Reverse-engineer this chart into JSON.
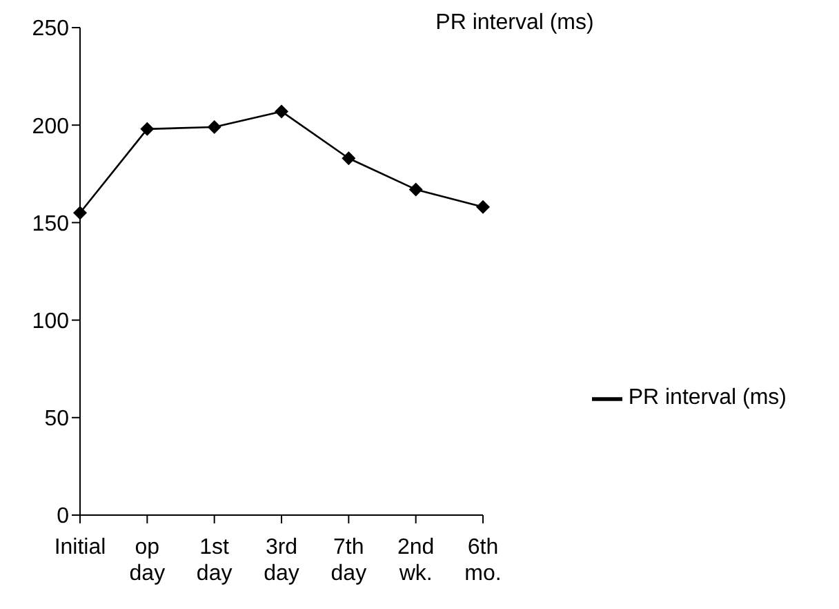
{
  "chart_data": {
    "type": "line",
    "title": "PR interval (ms)",
    "categories": [
      "Initial",
      "op\nday",
      "1st\nday",
      "3rd\nday",
      "7th\nday",
      "2nd\nwk.",
      "6th\nmo."
    ],
    "series": [
      {
        "name": "PR interval (ms)",
        "color": "#000000",
        "values": [
          155,
          198,
          199,
          207,
          183,
          167,
          158
        ]
      }
    ],
    "ylim": [
      0,
      250
    ],
    "yticks": [
      0,
      50,
      100,
      150,
      200,
      250
    ],
    "grid": false,
    "legend": "right",
    "marker": "diamond",
    "line_style": "solid"
  }
}
